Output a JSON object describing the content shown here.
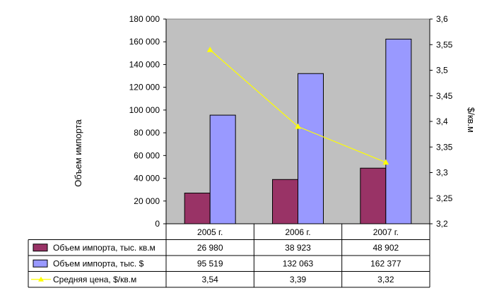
{
  "chart_data": {
    "type": "bar",
    "categories": [
      "2005 г.",
      "2006 г.",
      "2007 г."
    ],
    "series": [
      {
        "name": "Объем импорта, тыс. кв.м",
        "type": "bar",
        "axis": "left",
        "values": [
          26980,
          38923,
          48902
        ],
        "labels": [
          "26 980",
          "38 923",
          "48 902"
        ],
        "color": "#993366"
      },
      {
        "name": "Объем импорта, тыс. $",
        "type": "bar",
        "axis": "left",
        "values": [
          95519,
          132063,
          162377
        ],
        "labels": [
          "95 519",
          "132 063",
          "162 377"
        ],
        "color": "#9999ff"
      },
      {
        "name": "Средняя цена, $/кв.м",
        "type": "line",
        "axis": "right",
        "values": [
          3.54,
          3.39,
          3.32
        ],
        "labels": [
          "3,54",
          "3,39",
          "3,32"
        ],
        "color": "#ffff00"
      }
    ],
    "ylabel": "Объем импорта",
    "y2label": "$/кв.м",
    "ylim": [
      0,
      180000
    ],
    "y2lim": [
      3.2,
      3.6
    ],
    "yticks": [
      "0",
      "20 000",
      "40 000",
      "60 000",
      "80 000",
      "100 000",
      "120 000",
      "140 000",
      "160 000",
      "180 000"
    ],
    "y2ticks": [
      "3,2",
      "3,25",
      "3,3",
      "3,35",
      "3,4",
      "3,45",
      "3,5",
      "3,55",
      "3,6"
    ],
    "plot_background": "#c0c0c0",
    "grid": false,
    "legend": "data-table-below"
  }
}
